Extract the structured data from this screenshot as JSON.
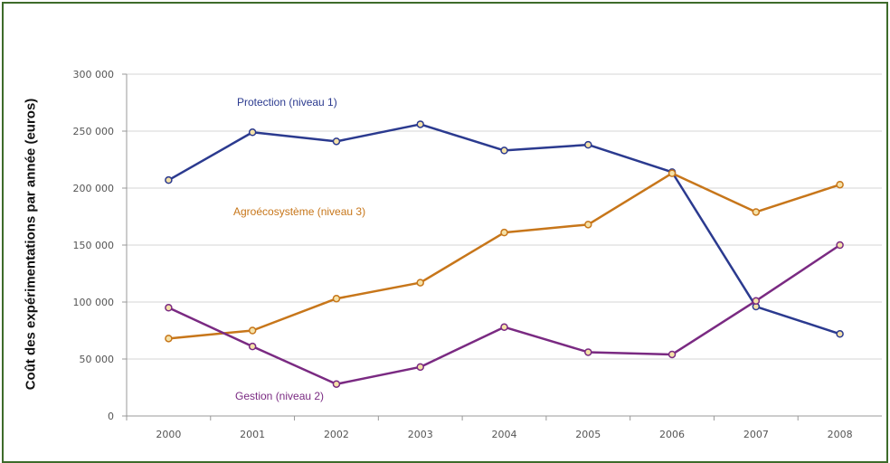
{
  "chart_data": {
    "type": "line",
    "ylabel": "Coût des expérimentations par année (euros)",
    "x": [
      "2000",
      "2001",
      "2002",
      "2003",
      "2004",
      "2005",
      "2006",
      "2007",
      "2008"
    ],
    "ylim": [
      0,
      300000
    ],
    "yticks": [
      0,
      50000,
      100000,
      150000,
      200000,
      250000,
      300000
    ],
    "ytick_labels": [
      "0",
      "50 000",
      "100 000",
      "150 000",
      "200 000",
      "250 000",
      "300 000"
    ],
    "grid": true,
    "series": [
      {
        "name": "Protection (niveau 1)",
        "color": "#2b3a8f",
        "values": [
          207000,
          249000,
          241000,
          256000,
          233000,
          238000,
          214000,
          96000,
          72000
        ]
      },
      {
        "name": "Agroécosystème (niveau 3)",
        "color": "#c7761a",
        "values": [
          68000,
          75000,
          103000,
          117000,
          161000,
          168000,
          213000,
          179000,
          203000
        ]
      },
      {
        "name": "Gestion (niveau 2)",
        "color": "#7a2a82",
        "values": [
          95000,
          61000,
          28000,
          43000,
          78000,
          56000,
          54000,
          101000,
          150000
        ]
      }
    ]
  }
}
